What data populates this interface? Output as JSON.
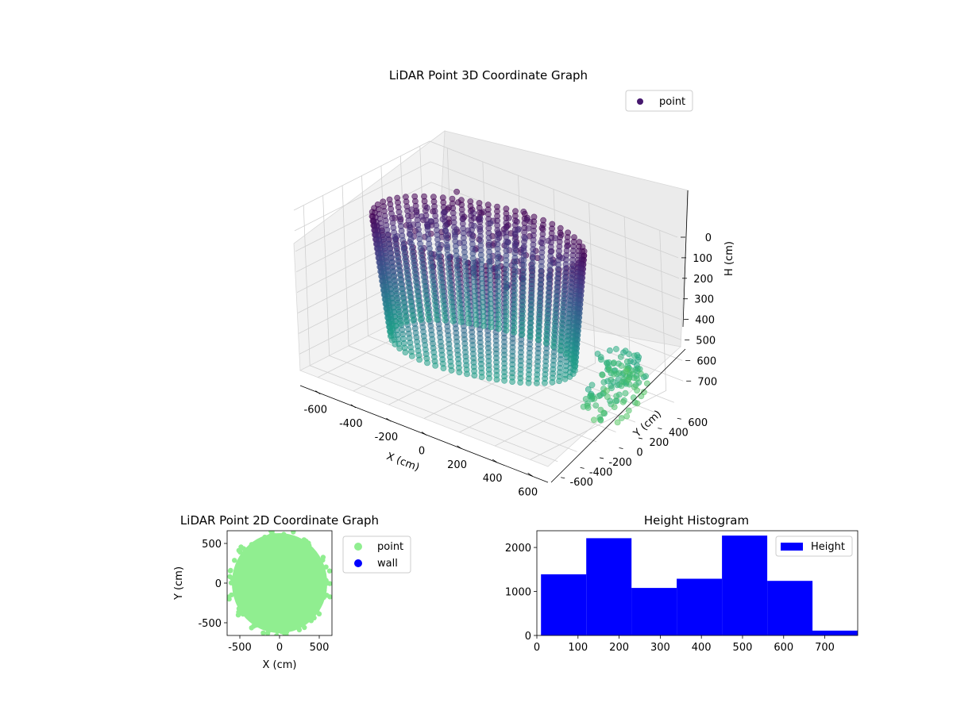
{
  "chart_data": [
    {
      "type": "scatter",
      "title": "LiDAR Point 3D Coordinate Graph",
      "projection": "3d",
      "xlabel": "X (cm)",
      "ylabel": "Y (cm)",
      "zlabel": "H (cm)",
      "xlim": [
        -700,
        700
      ],
      "ylim": [
        -700,
        700
      ],
      "zlim": [
        0,
        780
      ],
      "z_inverted": true,
      "xticks": [
        -600,
        -400,
        -200,
        0,
        200,
        400,
        600
      ],
      "yticks": [
        -600,
        -400,
        -200,
        0,
        200,
        400,
        600
      ],
      "zticks": [
        0,
        100,
        200,
        300,
        400,
        500,
        600,
        700
      ],
      "colormap": "viridis (colored by height)",
      "legend": {
        "placement": "top-right",
        "entries": [
          "point"
        ]
      },
      "series": [
        {
          "name": "point",
          "color": "#46186e",
          "description_points": "rings of wall points, radius ~350-550 cm, height 0-780 cm; floor fan toward +Y"
        }
      ],
      "grid": true
    },
    {
      "type": "scatter",
      "title": "LiDAR Point 2D Coordinate Graph",
      "xlabel": "X (cm)",
      "ylabel": "Y (cm)",
      "xlim": [
        -660,
        660
      ],
      "ylim": [
        -660,
        660
      ],
      "xticks": [
        -500,
        0,
        500
      ],
      "yticks": [
        -500,
        0,
        500
      ],
      "legend": {
        "placement": "outside-right",
        "entries": [
          {
            "name": "point",
            "color": "#90ee90"
          },
          {
            "name": "wall",
            "color": "#0000ff"
          }
        ]
      },
      "shape": "filled disc of points, radius ~620 cm",
      "grid": false
    },
    {
      "type": "bar",
      "title": "Height Histogram",
      "xlabel": "",
      "ylabel": "",
      "xlim": [
        0,
        780
      ],
      "ylim": [
        0,
        2380
      ],
      "xticks": [
        0,
        100,
        200,
        300,
        400,
        500,
        600,
        700
      ],
      "yticks": [
        0,
        1000,
        2000
      ],
      "bins": [
        [
          10,
          120
        ],
        [
          120,
          230
        ],
        [
          230,
          340
        ],
        [
          340,
          450
        ],
        [
          450,
          560
        ],
        [
          560,
          670
        ],
        [
          670,
          780
        ]
      ],
      "values": [
        1390,
        2210,
        1080,
        1290,
        2270,
        1240,
        110
      ],
      "color": "#0000ff",
      "legend": {
        "placement": "top-right",
        "entries": [
          "Height"
        ]
      },
      "grid": false
    }
  ]
}
